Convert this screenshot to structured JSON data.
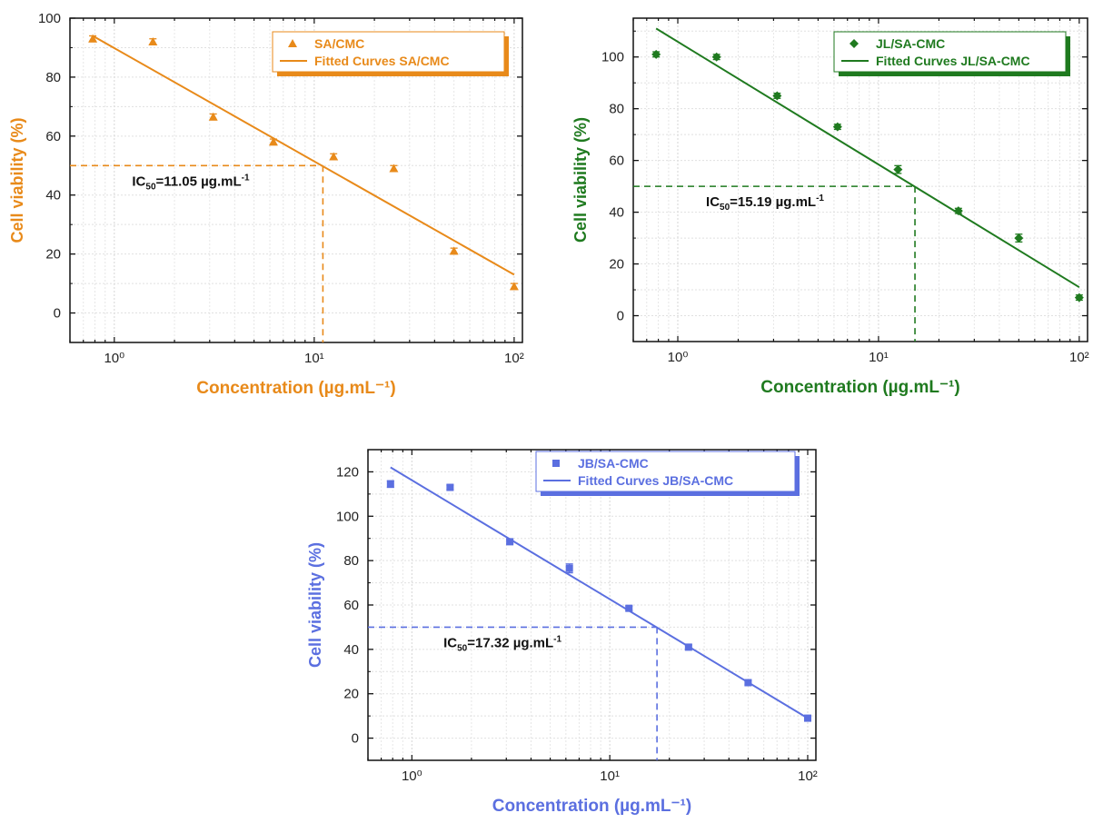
{
  "chart_data": [
    {
      "type": "scatter",
      "color": "#e88a1a",
      "marker": "triangle",
      "xlabel": "Concentration (µg.mL⁻¹)",
      "ylabel": "Cell viability (%)",
      "xscale": "log",
      "xlim": [
        0.6,
        110
      ],
      "ylim": [
        -10,
        100
      ],
      "yticks": [
        0,
        20,
        40,
        60,
        80,
        100
      ],
      "xticks": [
        1,
        10,
        100
      ],
      "xtick_labels": [
        "10⁰",
        "10¹",
        "10²"
      ],
      "grid": true,
      "legend_position": "top-right",
      "series": [
        {
          "name": "SA/CMC",
          "kind": "points",
          "x": [
            0.78,
            1.56,
            3.125,
            6.25,
            12.5,
            25,
            50,
            100
          ],
          "y": [
            93,
            92,
            66.5,
            58,
            53,
            49,
            21,
            9
          ],
          "err": [
            1,
            1,
            1,
            1,
            1,
            1,
            1,
            1
          ]
        },
        {
          "name": "Fitted Curves SA/CMC",
          "kind": "line",
          "x": [
            0.78,
            100
          ],
          "y": [
            94,
            13
          ]
        }
      ],
      "ic50": {
        "x": 11.05,
        "y": 50,
        "label_main": "IC",
        "label_sub": "50",
        "label_rest": "=11.05 µg.mL",
        "label_sup": "-1"
      }
    },
    {
      "type": "scatter",
      "color": "#1f7a1f",
      "marker": "diamond",
      "xlabel": "Concentration (µg.mL⁻¹)",
      "ylabel": "Cell viability (%)",
      "xscale": "log",
      "xlim": [
        0.6,
        110
      ],
      "ylim": [
        -10,
        115
      ],
      "yticks": [
        0,
        20,
        40,
        60,
        80,
        100
      ],
      "xticks": [
        1,
        10,
        100
      ],
      "xtick_labels": [
        "10⁰",
        "10¹",
        "10²"
      ],
      "grid": true,
      "legend_position": "top-right",
      "series": [
        {
          "name": "JL/SA-CMC",
          "kind": "points",
          "x": [
            0.78,
            1.56,
            3.125,
            6.25,
            12.5,
            25,
            50,
            100
          ],
          "y": [
            101,
            100,
            85,
            73,
            56.5,
            40.5,
            30,
            7
          ],
          "err": [
            1,
            1,
            1,
            1,
            1.5,
            1,
            1.5,
            1
          ]
        },
        {
          "name": "Fitted Curves JL/SA-CMC",
          "kind": "line",
          "x": [
            0.78,
            100
          ],
          "y": [
            111,
            11
          ]
        }
      ],
      "ic50": {
        "x": 15.19,
        "y": 50,
        "label_main": "IC",
        "label_sub": "50",
        "label_rest": "=15.19 µg.mL",
        "label_sup": "-1"
      }
    },
    {
      "type": "scatter",
      "color": "#5b6fe0",
      "marker": "square",
      "xlabel": "Concentration (µg.mL⁻¹)",
      "ylabel": "Cell viability (%)",
      "xscale": "log",
      "xlim": [
        0.6,
        110
      ],
      "ylim": [
        -10,
        130
      ],
      "yticks": [
        0,
        20,
        40,
        60,
        80,
        100,
        120
      ],
      "xticks": [
        1,
        10,
        100
      ],
      "xtick_labels": [
        "10⁰",
        "10¹",
        "10²"
      ],
      "grid": true,
      "legend_position": "top-right",
      "series": [
        {
          "name": "JB/SA-CMC",
          "kind": "points",
          "x": [
            0.78,
            1.56,
            3.125,
            6.25,
            12.5,
            25,
            50,
            100
          ],
          "y": [
            114.5,
            113,
            88.5,
            76.5,
            58.5,
            41,
            25,
            9
          ],
          "err": [
            1.5,
            1,
            1,
            2,
            1,
            1,
            1,
            1
          ]
        },
        {
          "name": "Fitted Curves JB/SA-CMC",
          "kind": "line",
          "x": [
            0.78,
            100
          ],
          "y": [
            122,
            9
          ]
        }
      ],
      "ic50": {
        "x": 17.32,
        "y": 50,
        "label_main": "IC",
        "label_sub": "50",
        "label_rest": "=17.32 µg.mL",
        "label_sup": "-1"
      }
    }
  ]
}
